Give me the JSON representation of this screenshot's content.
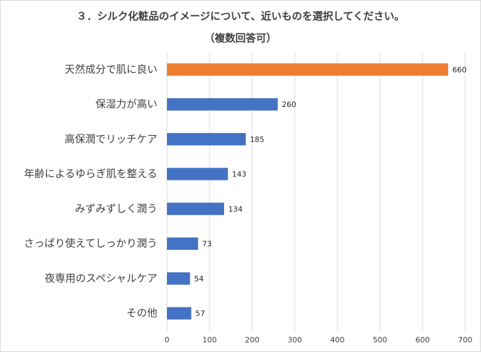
{
  "chart_data": {
    "type": "hbar",
    "title": "３．シルク化粧品のイメージについて、近いものを選択してください。",
    "subtitle": "（複数回答可）",
    "categories": [
      "天然成分で肌に良い",
      "保湿力が高い",
      "高保潤でリッチケア",
      "年齢によるゆらぎ肌を整える",
      "みずみずしく潤う",
      "さっぱり使えてしっかり潤う",
      "夜専用のスペシャルケア",
      "その他"
    ],
    "values": [
      660,
      260,
      185,
      143,
      134,
      73,
      54,
      57
    ],
    "colors": [
      "#ed7d31",
      "#4472c4",
      "#4472c4",
      "#4472c4",
      "#4472c4",
      "#4472c4",
      "#4472c4",
      "#4472c4"
    ],
    "xlim": [
      0,
      700
    ],
    "xticks": [
      0,
      100,
      200,
      300,
      400,
      500,
      600,
      700
    ],
    "grid": true
  }
}
